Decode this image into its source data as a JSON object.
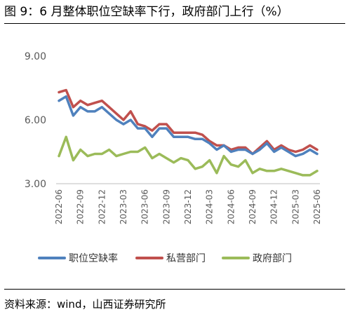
{
  "title": "图 9：6 月整体职位空缺率下行，政府部门上行（%）",
  "source": "资料来源：wind，山西证券研究所",
  "chart_data": {
    "type": "line",
    "title": "图 9：6 月整体职位空缺率下行，政府部门上行（%）",
    "x": [
      "2022-06",
      "2022-07",
      "2022-08",
      "2022-09",
      "2022-10",
      "2022-11",
      "2022-12",
      "2023-01",
      "2023-02",
      "2023-03",
      "2023-04",
      "2023-05",
      "2023-06",
      "2023-07",
      "2023-08",
      "2023-09",
      "2023-10",
      "2023-11",
      "2023-12",
      "2024-01",
      "2024-02",
      "2024-03",
      "2024-04",
      "2024-05",
      "2024-06",
      "2024-07",
      "2024-08",
      "2024-09",
      "2024-10",
      "2024-11",
      "2024-12",
      "2025-01",
      "2025-02",
      "2025-03",
      "2025-04",
      "2025-05",
      "2025-06"
    ],
    "xticks": [
      "2022-06",
      "2022-09",
      "2022-12",
      "2023-03",
      "2023-06",
      "2023-09",
      "2023-12",
      "2024-03",
      "2024-06",
      "2024-09",
      "2024-12",
      "2025-03",
      "2025-06"
    ],
    "yticks": [
      "3.00",
      "6.00",
      "9.00"
    ],
    "ylim": [
      3,
      9
    ],
    "grid": false,
    "legend": "bottom",
    "series": [
      {
        "name": "职位空缺率",
        "color": "#4F81BD",
        "values": [
          6.9,
          7.1,
          6.2,
          6.6,
          6.4,
          6.4,
          6.6,
          6.3,
          6.0,
          5.8,
          6.0,
          5.6,
          5.6,
          5.2,
          5.6,
          5.6,
          5.2,
          5.2,
          5.2,
          5.1,
          5.1,
          4.9,
          4.6,
          4.8,
          4.5,
          4.6,
          4.6,
          4.4,
          4.6,
          4.9,
          4.5,
          4.7,
          4.5,
          4.3,
          4.4,
          4.6,
          4.4
        ]
      },
      {
        "name": "私营部门",
        "color": "#C0504D",
        "values": [
          7.3,
          7.4,
          6.6,
          6.9,
          6.7,
          6.8,
          6.9,
          6.6,
          6.3,
          6.0,
          6.4,
          5.8,
          5.7,
          5.5,
          5.8,
          5.8,
          5.4,
          5.4,
          5.4,
          5.4,
          5.3,
          5.0,
          4.8,
          4.8,
          4.6,
          4.7,
          4.7,
          4.4,
          4.7,
          5.0,
          4.6,
          4.8,
          4.6,
          4.5,
          4.6,
          4.8,
          4.6
        ]
      },
      {
        "name": "政府部门",
        "color": "#9BBB59",
        "values": [
          4.3,
          5.2,
          4.1,
          4.6,
          4.3,
          4.4,
          4.4,
          4.6,
          4.3,
          4.4,
          4.5,
          4.5,
          4.7,
          4.2,
          4.4,
          4.2,
          4.0,
          4.2,
          4.1,
          3.7,
          3.8,
          4.1,
          3.5,
          4.3,
          3.9,
          3.8,
          4.1,
          3.5,
          3.7,
          3.6,
          3.6,
          3.7,
          3.6,
          3.5,
          3.4,
          3.4,
          3.6
        ]
      }
    ]
  }
}
